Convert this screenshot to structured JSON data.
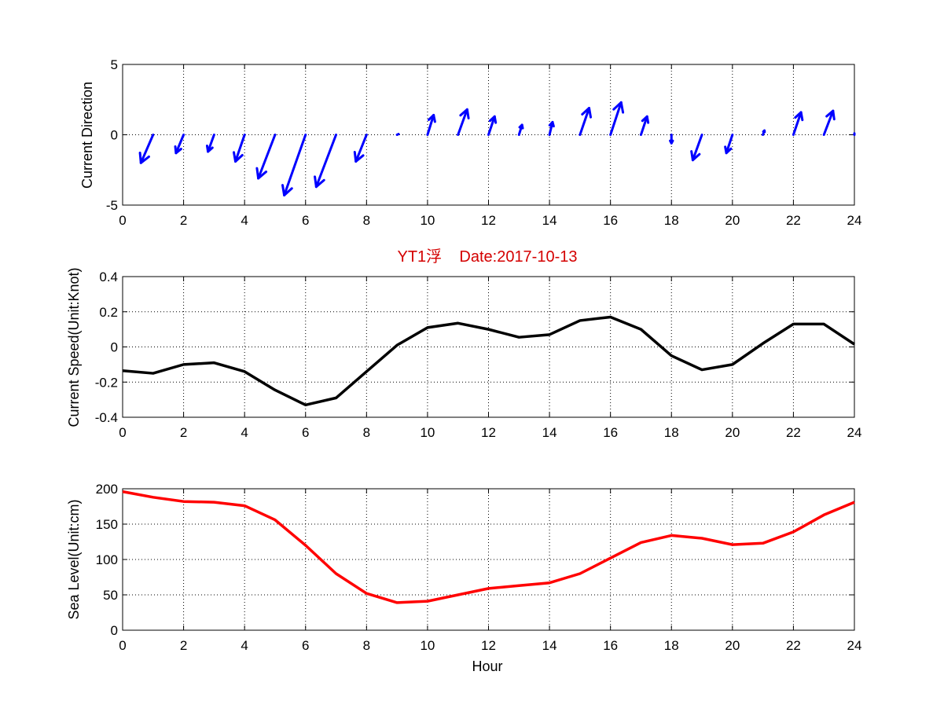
{
  "colors": {
    "arrow": "#0000ff",
    "speed_line": "#000000",
    "sea_level_line": "#ff0000",
    "title": "#d40000"
  },
  "chart_data": [
    {
      "type": "quiver",
      "title": "",
      "xlabel": "",
      "ylabel": "Current Direction",
      "xlim": [
        0,
        24
      ],
      "ylim": [
        -5,
        5
      ],
      "xticks": [
        "0",
        "2",
        "4",
        "6",
        "8",
        "10",
        "12",
        "14",
        "16",
        "18",
        "20",
        "22",
        "24"
      ],
      "yticks": [
        "-5",
        "0",
        "5"
      ],
      "grid": true,
      "vectors": [
        {
          "x": 1,
          "u": -0.4,
          "v": -2.0
        },
        {
          "x": 2,
          "u": -0.25,
          "v": -1.3
        },
        {
          "x": 3,
          "u": -0.2,
          "v": -1.2
        },
        {
          "x": 4,
          "u": -0.3,
          "v": -1.9
        },
        {
          "x": 5,
          "u": -0.55,
          "v": -3.1
        },
        {
          "x": 6,
          "u": -0.7,
          "v": -4.3
        },
        {
          "x": 7,
          "u": -0.65,
          "v": -3.7
        },
        {
          "x": 8,
          "u": -0.35,
          "v": -1.9
        },
        {
          "x": 9,
          "u": 0.05,
          "v": 0.05
        },
        {
          "x": 10,
          "u": 0.2,
          "v": 1.4
        },
        {
          "x": 11,
          "u": 0.3,
          "v": 1.8
        },
        {
          "x": 12,
          "u": 0.2,
          "v": 1.3
        },
        {
          "x": 13,
          "u": 0.1,
          "v": 0.7
        },
        {
          "x": 14,
          "u": 0.1,
          "v": 0.9
        },
        {
          "x": 15,
          "u": 0.3,
          "v": 1.9
        },
        {
          "x": 16,
          "u": 0.35,
          "v": 2.3
        },
        {
          "x": 17,
          "u": 0.2,
          "v": 1.3
        },
        {
          "x": 18,
          "u": 0.0,
          "v": -0.6
        },
        {
          "x": 19,
          "u": -0.3,
          "v": -1.8
        },
        {
          "x": 20,
          "u": -0.2,
          "v": -1.3
        },
        {
          "x": 21,
          "u": 0.05,
          "v": 0.3
        },
        {
          "x": 22,
          "u": 0.25,
          "v": 1.6
        },
        {
          "x": 23,
          "u": 0.3,
          "v": 1.7
        },
        {
          "x": 24,
          "u": 0.0,
          "v": 0.1
        }
      ]
    },
    {
      "type": "line",
      "title": "YT1浮    Date:2017-10-13",
      "xlabel": "",
      "ylabel": "Current Speed(Unit:Knot)",
      "xlim": [
        0,
        24
      ],
      "ylim": [
        -0.4,
        0.4
      ],
      "xticks": [
        "0",
        "2",
        "4",
        "6",
        "8",
        "10",
        "12",
        "14",
        "16",
        "18",
        "20",
        "22",
        "24"
      ],
      "yticks": [
        "-0.4",
        "-0.2",
        "0",
        "0.2",
        "0.4"
      ],
      "grid": true,
      "x": [
        0,
        1,
        2,
        3,
        4,
        5,
        6,
        7,
        8,
        9,
        10,
        11,
        12,
        13,
        14,
        15,
        16,
        17,
        18,
        19,
        20,
        21,
        22,
        23,
        24
      ],
      "values": [
        -0.135,
        -0.15,
        -0.1,
        -0.09,
        -0.14,
        -0.245,
        -0.33,
        -0.29,
        -0.14,
        0.01,
        0.11,
        0.135,
        0.1,
        0.055,
        0.07,
        0.15,
        0.17,
        0.1,
        -0.05,
        -0.13,
        -0.1,
        0.02,
        0.13,
        0.13,
        0.015
      ]
    },
    {
      "type": "line",
      "title": "",
      "xlabel": "Hour",
      "ylabel": "Sea Level(Unit:cm)",
      "xlim": [
        0,
        24
      ],
      "ylim": [
        0,
        200
      ],
      "xticks": [
        "0",
        "2",
        "4",
        "6",
        "8",
        "10",
        "12",
        "14",
        "16",
        "18",
        "20",
        "22",
        "24"
      ],
      "yticks": [
        "0",
        "50",
        "100",
        "150",
        "200"
      ],
      "grid": true,
      "x": [
        0,
        1,
        2,
        3,
        4,
        5,
        6,
        7,
        8,
        9,
        10,
        11,
        12,
        13,
        14,
        15,
        16,
        17,
        18,
        19,
        20,
        21,
        22,
        23,
        24
      ],
      "values": [
        196,
        188,
        182,
        181,
        176,
        156,
        120,
        80,
        52,
        39,
        41,
        50,
        59,
        63,
        67,
        80,
        102,
        124,
        134,
        130,
        121,
        123,
        139,
        163,
        181
      ]
    }
  ]
}
